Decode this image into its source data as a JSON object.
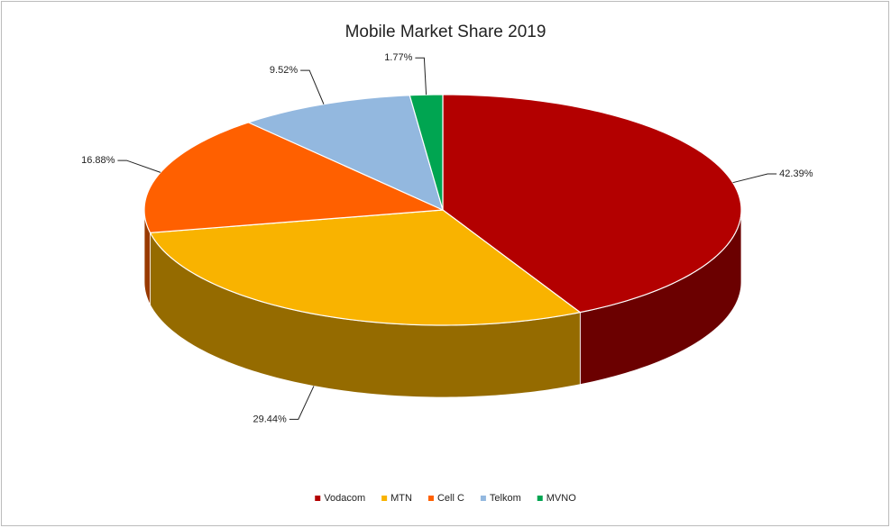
{
  "chart_data": {
    "type": "pie3d",
    "title": "Mobile Market Share 2019",
    "categories": [
      "Vodacom",
      "MTN",
      "Cell C",
      "Telkom",
      "MVNO"
    ],
    "values": [
      42.39,
      29.44,
      16.88,
      9.52,
      1.77
    ],
    "value_labels": [
      "42.39%",
      "29.44%",
      "16.88%",
      "9.52%",
      "1.77%"
    ],
    "colors": [
      "#b30000",
      "#f9b300",
      "#ff6000",
      "#93b8df",
      "#00a551"
    ],
    "legend": "bottom"
  }
}
